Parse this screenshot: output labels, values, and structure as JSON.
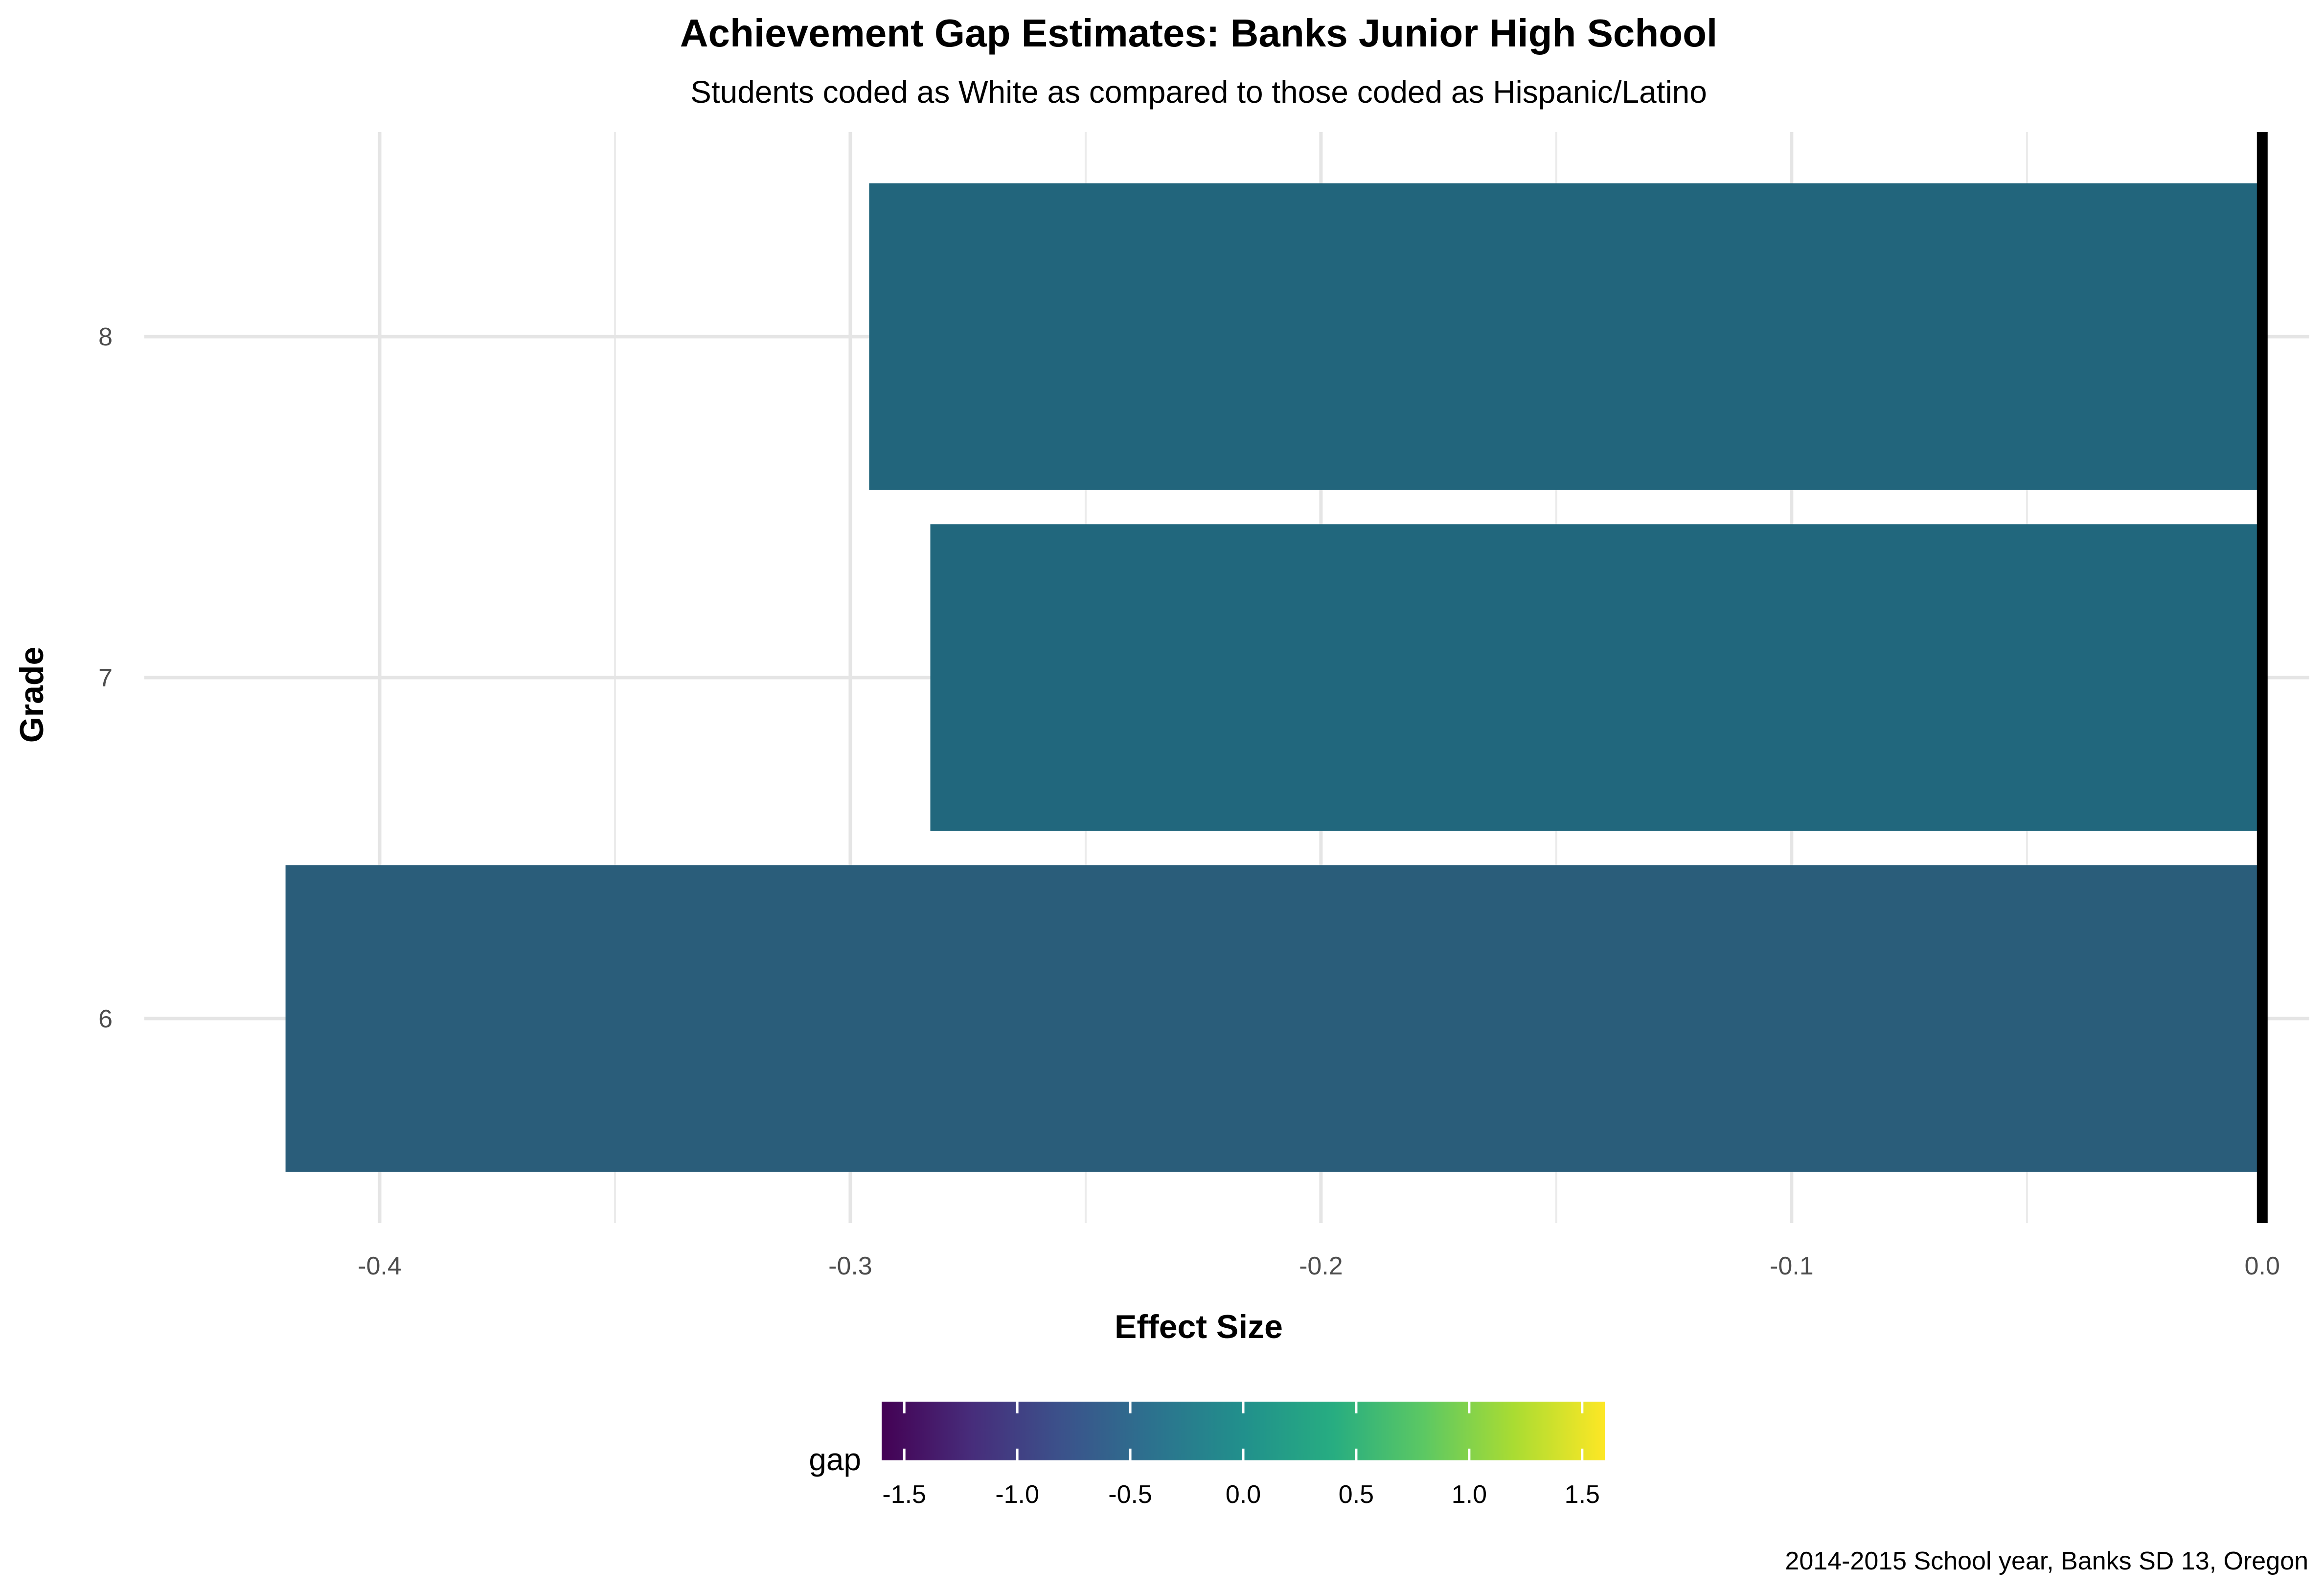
{
  "chart_data": {
    "type": "bar",
    "orientation": "horizontal",
    "title": "Achievement Gap Estimates: Banks Junior High School",
    "subtitle": "Students coded as White as compared to those coded as Hispanic/Latino",
    "xlabel": "Effect Size",
    "ylabel": "Grade",
    "caption": "2014-2015 School year, Banks SD 13, Oregon",
    "categories": [
      "6",
      "7",
      "8"
    ],
    "values": [
      -0.42,
      -0.283,
      -0.296
    ],
    "xlim": [
      -0.45,
      0.01
    ],
    "x_ticks": [
      -0.4,
      -0.3,
      -0.2,
      -0.1,
      0.0
    ],
    "x_tick_labels": [
      "-0.4",
      "-0.3",
      "-0.2",
      "-0.1",
      "0.0"
    ],
    "grid": true,
    "reference_line": 0.0,
    "bar_colors": [
      "#2A5D7A",
      "#21677D",
      "#22657C"
    ],
    "legend": {
      "title": "gap",
      "position": "bottom",
      "type": "colorbar",
      "palette": "viridis",
      "range": [
        -1.6,
        1.6
      ],
      "ticks": [
        -1.5,
        -1.0,
        -0.5,
        0.0,
        0.5,
        1.0,
        1.5
      ],
      "tick_labels": [
        "-1.5",
        "-1.0",
        "-0.5",
        "0.0",
        "0.5",
        "1.0",
        "1.5"
      ]
    }
  }
}
